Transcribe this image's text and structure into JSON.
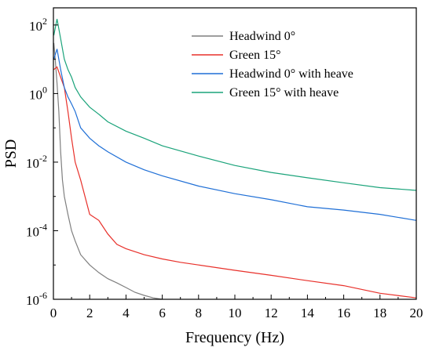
{
  "chart_data": {
    "type": "line",
    "xlabel": "Frequency (Hz)",
    "ylabel": "PSD",
    "xlim": [
      0,
      20
    ],
    "ylim_log10": [
      -6,
      2.5
    ],
    "y_scale": "log",
    "x_ticks": [
      0,
      2,
      4,
      6,
      8,
      10,
      12,
      14,
      16,
      18,
      20
    ],
    "y_ticks": [
      {
        "base": "10",
        "exp": "2",
        "value": 100
      },
      {
        "base": "10",
        "exp": "0",
        "value": 1
      },
      {
        "base": "10",
        "exp": "-2",
        "value": 0.01
      },
      {
        "base": "10",
        "exp": "-4",
        "value": 0.0001
      },
      {
        "base": "10",
        "exp": "-6",
        "value": 1e-06
      }
    ],
    "grid": false,
    "legend_position": "top-right",
    "series": [
      {
        "name": "Headwind 0°",
        "color": "#7f7f7f",
        "x": [
          0.02,
          0.1,
          0.2,
          0.3,
          0.4,
          0.5,
          0.6,
          0.8,
          1.0,
          1.2,
          1.5,
          2.0,
          2.5,
          3.0,
          3.5,
          4.0,
          4.5,
          5.0,
          5.5,
          6.0
        ],
        "values": [
          30,
          10,
          2,
          0.3,
          0.02,
          0.003,
          0.001,
          0.0003,
          0.0001,
          5e-05,
          2e-05,
          1e-05,
          6e-06,
          4e-06,
          3e-06,
          2.2e-06,
          1.6e-06,
          1.3e-06,
          1.1e-06,
          1e-06
        ]
      },
      {
        "name": "Green 15°",
        "color": "#e8302a",
        "x": [
          0.02,
          0.2,
          0.4,
          0.6,
          0.8,
          1.0,
          1.2,
          1.5,
          2.0,
          2.5,
          3.0,
          3.5,
          4.0,
          5.0,
          6.0,
          7.0,
          8.0,
          10.0,
          12.0,
          14.0,
          16.0,
          18.0,
          20.0
        ],
        "values": [
          5,
          6,
          3,
          1.5,
          0.3,
          0.05,
          0.01,
          0.003,
          0.0003,
          0.0002,
          8e-05,
          4e-05,
          3e-05,
          2e-05,
          1.5e-05,
          1.2e-05,
          1e-05,
          7e-06,
          5e-06,
          3.5e-06,
          2.5e-06,
          1.5e-06,
          1.1e-06
        ]
      },
      {
        "name": "Headwind 0° with heave",
        "color": "#1f6fd6",
        "x": [
          0.02,
          0.2,
          0.4,
          0.6,
          0.8,
          1.0,
          1.2,
          1.5,
          2.0,
          2.5,
          3.0,
          4.0,
          5.0,
          6.0,
          8.0,
          10.0,
          12.0,
          14.0,
          16.0,
          18.0,
          20.0
        ],
        "values": [
          10,
          20,
          5,
          1.5,
          0.8,
          0.5,
          0.3,
          0.1,
          0.05,
          0.03,
          0.02,
          0.01,
          0.006,
          0.004,
          0.002,
          0.0012,
          0.0008,
          0.0005,
          0.0004,
          0.0003,
          0.0002
        ]
      },
      {
        "name": "Green 15° with heave",
        "color": "#1aa37a",
        "x": [
          0.02,
          0.2,
          0.4,
          0.6,
          0.8,
          1.0,
          1.2,
          1.5,
          2.0,
          2.5,
          3.0,
          4.0,
          5.0,
          6.0,
          8.0,
          10.0,
          12.0,
          14.0,
          16.0,
          18.0,
          20.0
        ],
        "values": [
          50,
          150,
          40,
          10,
          5,
          3,
          1.5,
          0.8,
          0.4,
          0.25,
          0.15,
          0.08,
          0.05,
          0.03,
          0.015,
          0.008,
          0.005,
          0.0035,
          0.0025,
          0.0018,
          0.0015
        ]
      }
    ]
  }
}
